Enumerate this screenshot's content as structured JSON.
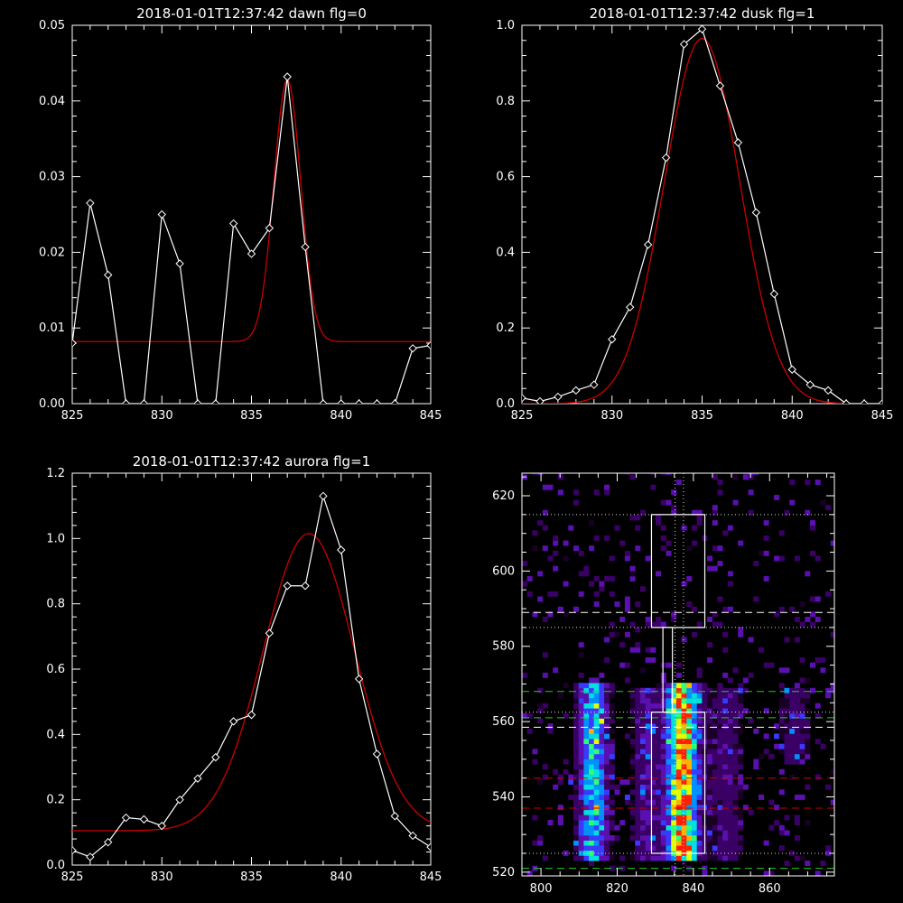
{
  "colors": {
    "background": "#000000",
    "data": "#ffffff",
    "fit": "#cc0000",
    "guide_green": "#22cc22",
    "guide_red": "#cc0000"
  },
  "chart_data": [
    {
      "type": "line",
      "title": "2018-01-01T12:37:42 dawn flg=0",
      "xlim": [
        825,
        845
      ],
      "ylim": [
        0,
        0.05
      ],
      "xticks": [
        "825",
        "830",
        "835",
        "840",
        "845"
      ],
      "yticks": [
        "0.00",
        "0.01",
        "0.02",
        "0.03",
        "0.04",
        "0.05"
      ],
      "series": [
        {
          "role": "data",
          "marker": "diamond",
          "x": [
            825,
            826,
            827,
            828,
            829,
            830,
            831,
            832,
            833,
            834,
            835,
            836,
            837,
            838,
            839,
            840,
            841,
            842,
            843,
            844,
            845
          ],
          "y": [
            0.008,
            0.0265,
            0.017,
            0,
            0,
            0.025,
            0.0185,
            0,
            0,
            0.0238,
            0.0198,
            0.0232,
            0.0432,
            0.0207,
            0,
            0,
            0,
            0,
            0,
            0.0073,
            0.0077
          ]
        },
        {
          "role": "fit",
          "kind": "gaussian",
          "amplitude": 0.0346,
          "center": 837.0,
          "sigma": 0.75,
          "offset": 0.0082
        }
      ]
    },
    {
      "type": "line",
      "title": "2018-01-01T12:37:42 dusk flg=1",
      "xlim": [
        825,
        845
      ],
      "ylim": [
        0,
        1.0
      ],
      "xticks": [
        "825",
        "830",
        "835",
        "840",
        "845"
      ],
      "yticks": [
        "0.0",
        "0.2",
        "0.4",
        "0.6",
        "0.8",
        "1.0"
      ],
      "series": [
        {
          "role": "data",
          "marker": "diamond",
          "x": [
            825,
            826,
            827,
            828,
            829,
            830,
            831,
            832,
            833,
            834,
            835,
            836,
            837,
            838,
            839,
            840,
            841,
            842,
            843,
            844,
            845
          ],
          "y": [
            0.015,
            0.006,
            0.018,
            0.035,
            0.05,
            0.17,
            0.255,
            0.42,
            0.65,
            0.95,
            0.99,
            0.84,
            0.69,
            0.505,
            0.29,
            0.09,
            0.05,
            0.035,
            0.0,
            0.0,
            0.0
          ]
        },
        {
          "role": "fit",
          "kind": "gaussian",
          "amplitude": 0.965,
          "center": 835.0,
          "sigma": 2.1,
          "offset": 0.0
        }
      ]
    },
    {
      "type": "line",
      "title": "2018-01-01T12:37:42 aurora flg=1",
      "xlim": [
        825,
        845
      ],
      "ylim": [
        0,
        1.2
      ],
      "xticks": [
        "825",
        "830",
        "835",
        "840",
        "845"
      ],
      "yticks": [
        "0.0",
        "0.2",
        "0.4",
        "0.6",
        "0.8",
        "1.0",
        "1.2"
      ],
      "series": [
        {
          "role": "data",
          "marker": "diamond",
          "x": [
            825,
            826,
            827,
            828,
            829,
            830,
            831,
            832,
            833,
            834,
            835,
            836,
            837,
            838,
            839,
            840,
            841,
            842,
            843,
            844,
            845
          ],
          "y": [
            0.045,
            0.025,
            0.07,
            0.145,
            0.14,
            0.12,
            0.2,
            0.265,
            0.33,
            0.44,
            0.46,
            0.71,
            0.855,
            0.855,
            1.13,
            0.965,
            0.57,
            0.34,
            0.15,
            0.09,
            0.055
          ]
        },
        {
          "role": "fit",
          "kind": "gaussian",
          "amplitude": 0.91,
          "center": 838.2,
          "sigma": 2.55,
          "offset": 0.105
        }
      ]
    },
    {
      "type": "heatmap",
      "xlim": [
        795,
        877
      ],
      "ylim": [
        519,
        626
      ],
      "xticks": [
        "800",
        "820",
        "840",
        "860"
      ],
      "yticks": [
        "520",
        "540",
        "560",
        "580",
        "600",
        "620"
      ],
      "colormap": [
        "#1a0026",
        "#3a0066",
        "#5a10b0",
        "#3a3aff",
        "#0090ff",
        "#00e0e0",
        "#30ff70",
        "#e0ff00",
        "#ffb000",
        "#ff2000"
      ],
      "bands": [
        {
          "x": 836.5,
          "width": 2.8,
          "y": [
            523,
            570
          ],
          "peak": 1.0
        },
        {
          "x": 813,
          "width": 2.6,
          "y": [
            523,
            570
          ],
          "peak": 0.6
        },
        {
          "x": 827,
          "width": 3,
          "y": [
            523,
            568
          ],
          "peak": 0.22
        },
        {
          "x": 848,
          "width": 3,
          "y": [
            523,
            568
          ],
          "peak": 0.2
        },
        {
          "x": 866,
          "width": 3,
          "y": [
            548,
            568
          ],
          "peak": 0.18
        }
      ],
      "boxes": [
        {
          "x": [
            829,
            843
          ],
          "y": [
            585,
            615
          ]
        },
        {
          "x": [
            829,
            843
          ],
          "y": [
            525,
            562.5
          ]
        }
      ],
      "dotted_h": [
        615,
        585,
        562.5,
        525
      ],
      "dotted_v": [
        835.2,
        837.4
      ],
      "dashed_green_h": [
        568,
        561,
        521
      ],
      "dashed_white_h": [
        589,
        558.5
      ],
      "dashed_red_h": [
        545,
        537
      ]
    }
  ]
}
